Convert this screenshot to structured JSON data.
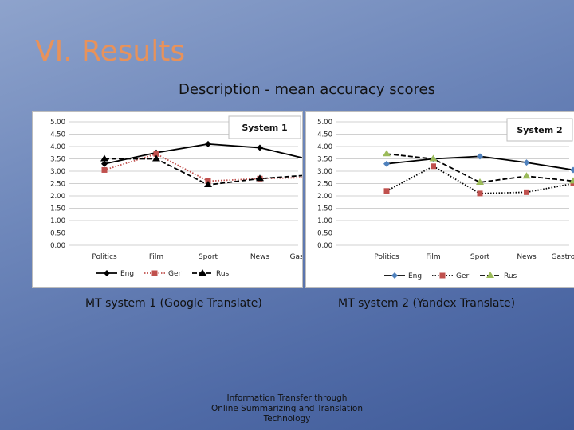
{
  "slide": {
    "title": "VI. Results",
    "subtitle": "Description - mean accuracy scores",
    "caption_left": "MT system 1 (Google Translate)",
    "caption_right": "MT system 2 (Yandex Translate)",
    "footer": [
      "Information Transfer through",
      "Online Summarizing and Translation",
      "Technology"
    ]
  },
  "chart_data": [
    {
      "type": "line",
      "title": "System 1",
      "categories": [
        "Politics",
        "Film",
        "Sport",
        "News",
        "Gastronomy"
      ],
      "ylim": [
        0,
        5
      ],
      "yticks": [
        "0.00",
        "0.50",
        "1.00",
        "1.50",
        "2.00",
        "2.50",
        "3.00",
        "3.50",
        "4.00",
        "4.50",
        "5.00"
      ],
      "grid": true,
      "legend": "bottom",
      "series": [
        {
          "name": "Eng",
          "values": [
            3.3,
            3.75,
            4.1,
            3.95,
            3.45
          ],
          "color": "#000000",
          "dash": "solid",
          "marker": "diamond"
        },
        {
          "name": "Ger",
          "values": [
            3.05,
            3.7,
            2.6,
            2.7,
            2.75
          ],
          "color": "#c0504d",
          "dash": "dotted",
          "marker": "square"
        },
        {
          "name": "Rus",
          "values": [
            3.5,
            3.5,
            2.45,
            2.7,
            2.85
          ],
          "color": "#000000",
          "dash": "dashed",
          "marker": "triangle"
        }
      ]
    },
    {
      "type": "line",
      "title": "System 2",
      "categories": [
        "Politics",
        "Film",
        "Sport",
        "News",
        "Gastronomy"
      ],
      "ylim": [
        0,
        5
      ],
      "yticks": [
        "0.00",
        "0.50",
        "1.00",
        "1.50",
        "2.00",
        "2.50",
        "3.00",
        "3.50",
        "4.00",
        "4.50",
        "5.00"
      ],
      "grid": true,
      "legend": "bottom",
      "series": [
        {
          "name": "Eng",
          "values": [
            3.3,
            3.5,
            3.6,
            3.35,
            3.05
          ],
          "color": "#000000",
          "dash": "solid",
          "marker": "diamond",
          "marker_color": "#4f81bd"
        },
        {
          "name": "Ger",
          "values": [
            2.2,
            3.2,
            2.1,
            2.15,
            2.5
          ],
          "color": "#000000",
          "dash": "dotted",
          "marker": "square",
          "marker_color": "#c0504d"
        },
        {
          "name": "Rus",
          "values": [
            3.7,
            3.5,
            2.55,
            2.8,
            2.6
          ],
          "color": "#000000",
          "dash": "dashed",
          "marker": "triangle",
          "marker_color": "#9bbb59"
        }
      ]
    }
  ]
}
